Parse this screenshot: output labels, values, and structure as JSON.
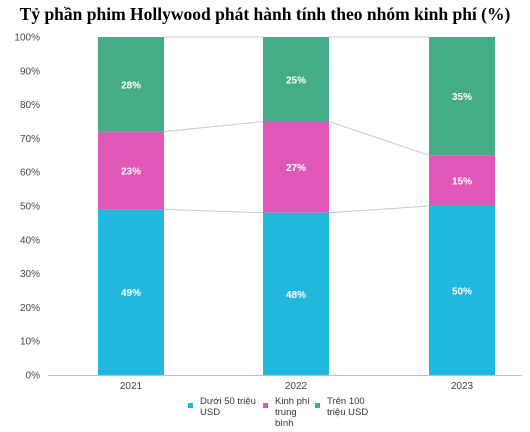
{
  "chart_data": {
    "type": "bar",
    "stacked": true,
    "title": "Tỷ phần phim Hollywood phát hành tính theo nhóm kinh phí (%)",
    "categories": [
      "2021",
      "2022",
      "2023"
    ],
    "ylim": [
      0,
      100
    ],
    "yticks": [
      "0%",
      "10%",
      "20%",
      "30%",
      "40%",
      "50%",
      "60%",
      "70%",
      "80%",
      "90%",
      "100%"
    ],
    "series": [
      {
        "name": "Dưới 50 triệu USD",
        "values": [
          49,
          48,
          50
        ],
        "labels": [
          "49%",
          "48%",
          "50%"
        ],
        "color": "#22b8de"
      },
      {
        "name": "Kinh phí trung bình",
        "values": [
          23,
          27,
          15
        ],
        "labels": [
          "23%",
          "27%",
          "15%"
        ],
        "color": "#e157b8"
      },
      {
        "name": "Trên 100 triệu USD",
        "values": [
          28,
          25,
          35
        ],
        "labels": [
          "28%",
          "25%",
          "35%"
        ],
        "color": "#45ad85"
      }
    ],
    "grid": false,
    "legend": "bottom"
  }
}
